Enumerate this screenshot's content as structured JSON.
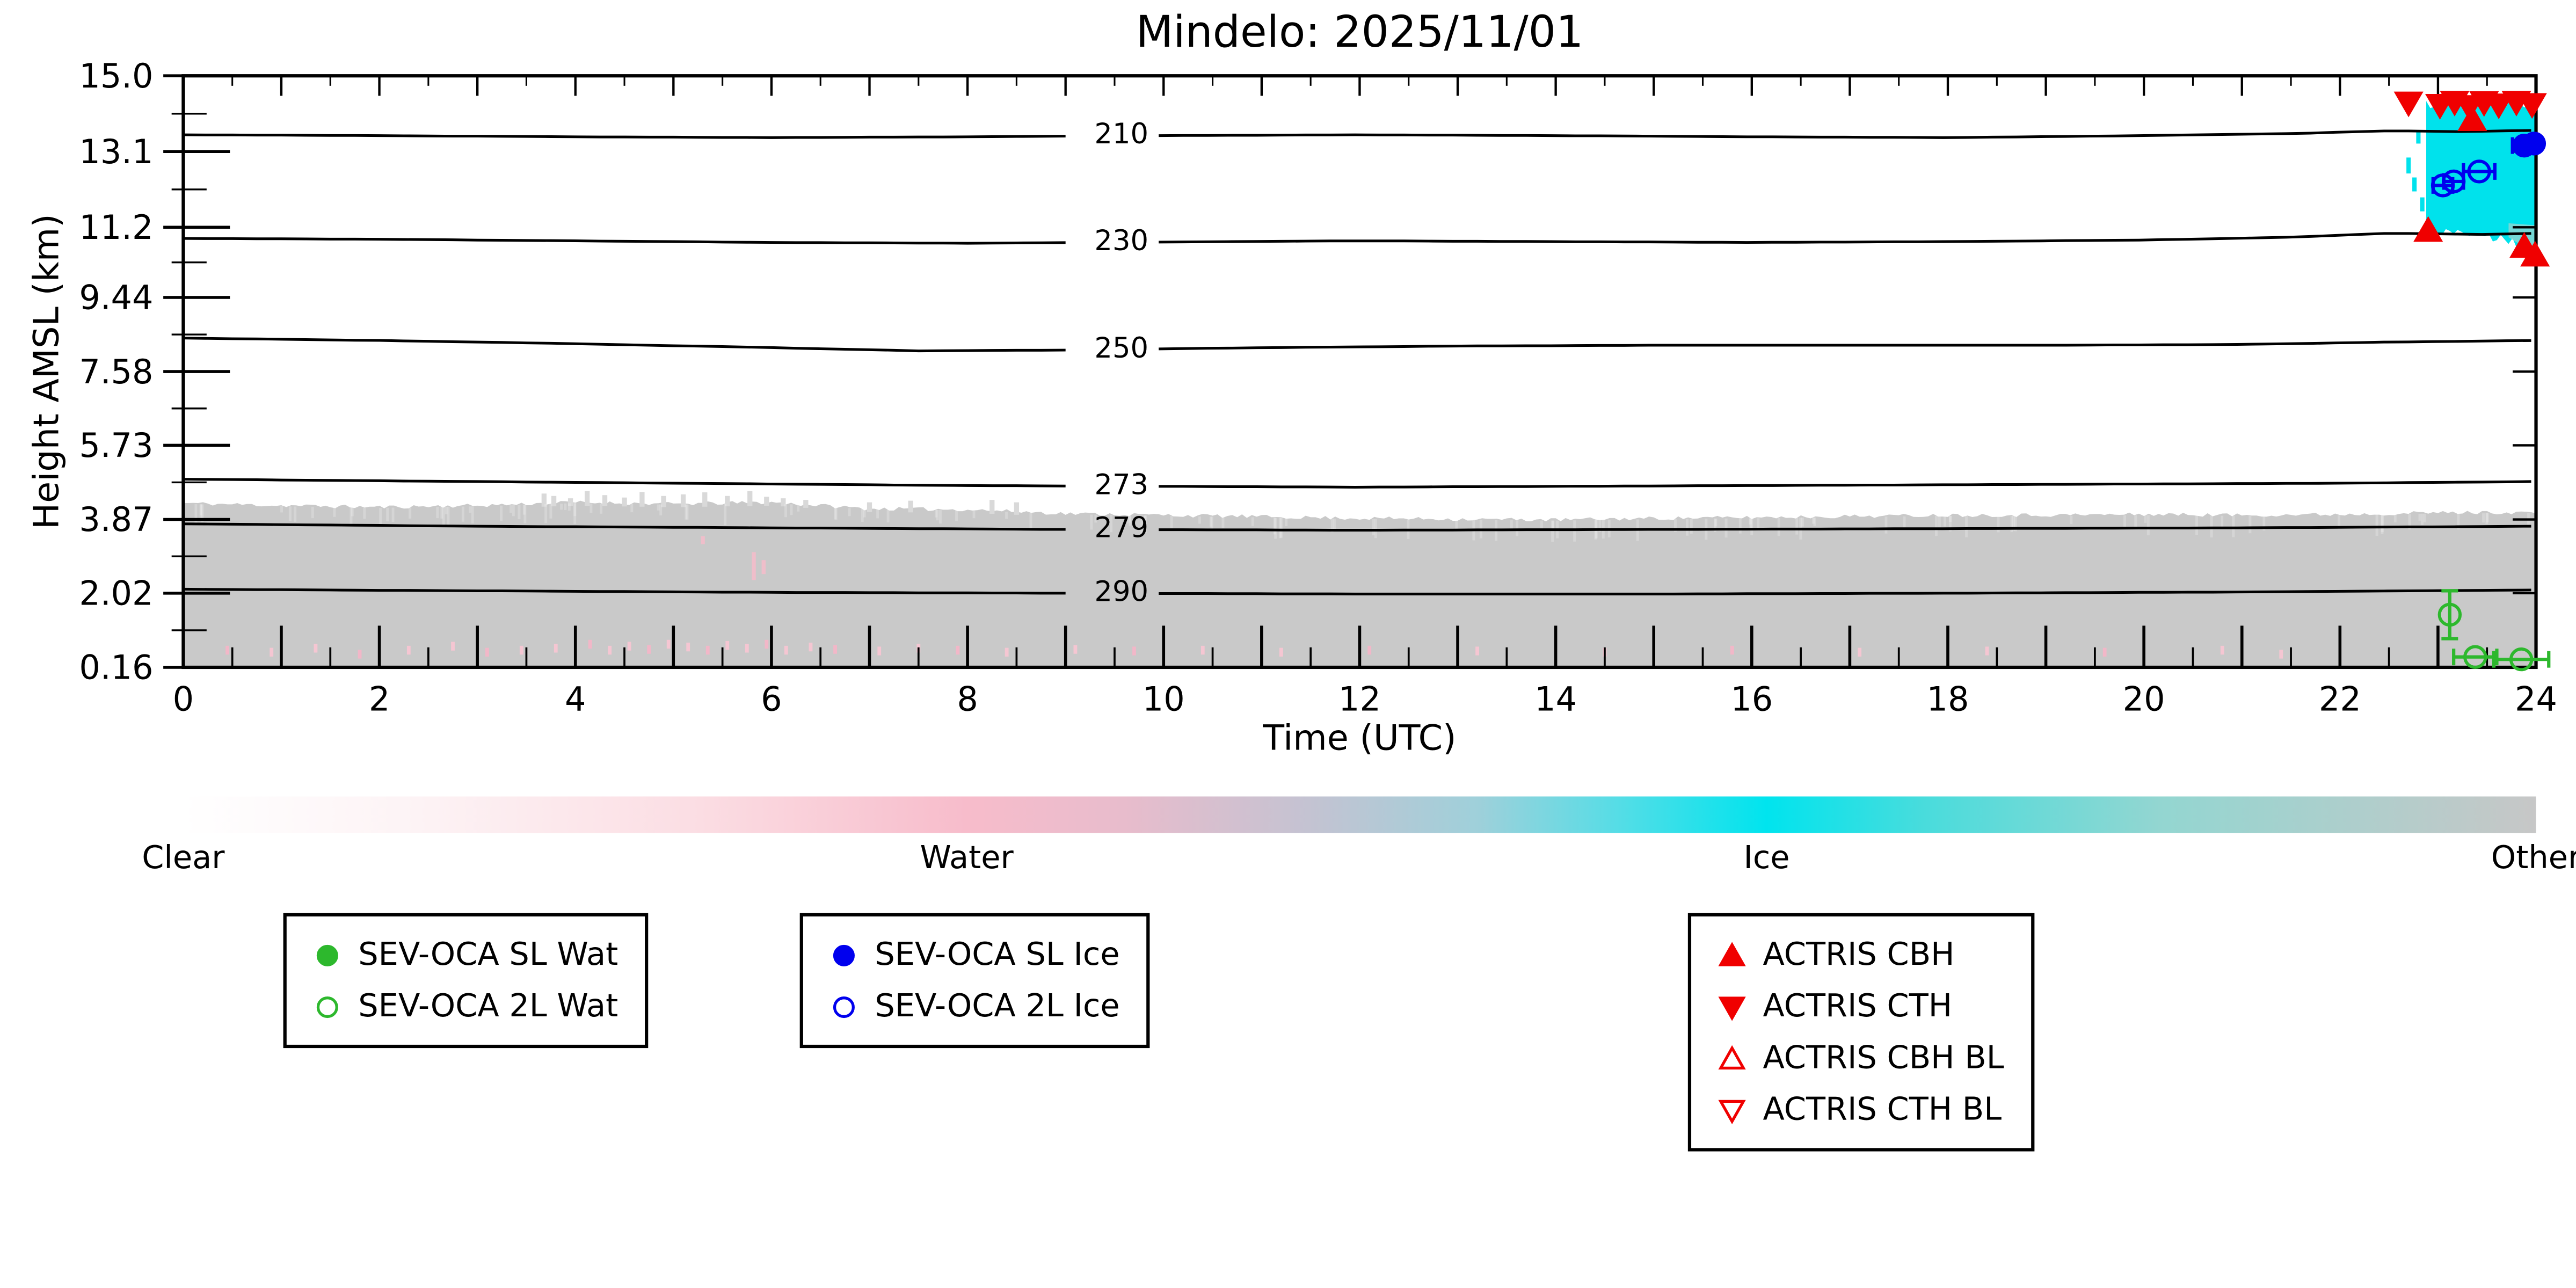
{
  "chart_data": {
    "type": "heatmap",
    "title": "Mindelo: 2025/11/01",
    "xlabel": "Time (UTC)",
    "ylabel": "Height AMSL (km)",
    "xlim": [
      0,
      24
    ],
    "ylim_km": [
      0.16,
      15.0
    ],
    "x_label_ticks": [
      "0",
      "2",
      "4",
      "6",
      "8",
      "10",
      "12",
      "14",
      "16",
      "18",
      "20",
      "22",
      "24"
    ],
    "x_label_step": 2,
    "x_major_step": 1,
    "x_minor_step": 0.5,
    "y_ticks": [
      {
        "label": "15.0",
        "value": 15.0
      },
      {
        "label": "13.1",
        "value": 13.1
      },
      {
        "label": "11.2",
        "value": 11.2
      },
      {
        "label": "9.44",
        "value": 9.44
      },
      {
        "label": "7.58",
        "value": 7.58
      },
      {
        "label": "5.73",
        "value": 5.73
      },
      {
        "label": "3.87",
        "value": 3.87
      },
      {
        "label": "2.02",
        "value": 2.02
      },
      {
        "label": "0.16",
        "value": 0.16
      }
    ],
    "isotherms": [
      {
        "label": "210",
        "label_t": 9.57,
        "label_h": 13.5,
        "points": [
          [
            0,
            13.52
          ],
          [
            2,
            13.5
          ],
          [
            4,
            13.47
          ],
          [
            6,
            13.45
          ],
          [
            8,
            13.47
          ],
          [
            10,
            13.5
          ],
          [
            12,
            13.52
          ],
          [
            14,
            13.5
          ],
          [
            16,
            13.47
          ],
          [
            18,
            13.45
          ],
          [
            20,
            13.5
          ],
          [
            21.5,
            13.55
          ],
          [
            22.5,
            13.62
          ],
          [
            23.2,
            13.6
          ],
          [
            24,
            13.63
          ]
        ]
      },
      {
        "label": "230",
        "label_t": 9.57,
        "label_h": 10.82,
        "points": [
          [
            0,
            10.92
          ],
          [
            2,
            10.9
          ],
          [
            4,
            10.86
          ],
          [
            6,
            10.82
          ],
          [
            8,
            10.8
          ],
          [
            10,
            10.83
          ],
          [
            12,
            10.86
          ],
          [
            14,
            10.84
          ],
          [
            16,
            10.82
          ],
          [
            18,
            10.84
          ],
          [
            20,
            10.88
          ],
          [
            21.5,
            10.95
          ],
          [
            22.5,
            11.05
          ],
          [
            23.5,
            11.02
          ],
          [
            24,
            11.05
          ]
        ]
      },
      {
        "label": "250",
        "label_t": 9.57,
        "label_h": 8.13,
        "points": [
          [
            0,
            8.42
          ],
          [
            2,
            8.36
          ],
          [
            4,
            8.28
          ],
          [
            6,
            8.18
          ],
          [
            7.5,
            8.1
          ],
          [
            9,
            8.12
          ],
          [
            11,
            8.18
          ],
          [
            13,
            8.22
          ],
          [
            15,
            8.24
          ],
          [
            17,
            8.24
          ],
          [
            19,
            8.24
          ],
          [
            21,
            8.26
          ],
          [
            22.5,
            8.32
          ],
          [
            24,
            8.36
          ]
        ]
      },
      {
        "label": "273",
        "label_t": 9.57,
        "label_h": 4.7,
        "points": [
          [
            0,
            4.88
          ],
          [
            2,
            4.84
          ],
          [
            4,
            4.8
          ],
          [
            6,
            4.76
          ],
          [
            8,
            4.72
          ],
          [
            10,
            4.7
          ],
          [
            12,
            4.68
          ],
          [
            14,
            4.7
          ],
          [
            16,
            4.72
          ],
          [
            18,
            4.74
          ],
          [
            20,
            4.76
          ],
          [
            22,
            4.78
          ],
          [
            24,
            4.82
          ]
        ]
      },
      {
        "label": "279",
        "label_t": 9.57,
        "label_h": 3.62,
        "points": [
          [
            0,
            3.76
          ],
          [
            3,
            3.7
          ],
          [
            6,
            3.66
          ],
          [
            9,
            3.62
          ],
          [
            12,
            3.6
          ],
          [
            15,
            3.62
          ],
          [
            18,
            3.64
          ],
          [
            21,
            3.66
          ],
          [
            24,
            3.7
          ]
        ]
      },
      {
        "label": "290",
        "label_t": 9.57,
        "label_h": 2.02,
        "points": [
          [
            0,
            2.12
          ],
          [
            3,
            2.08
          ],
          [
            6,
            2.04
          ],
          [
            9,
            2.02
          ],
          [
            12,
            2.0
          ],
          [
            15,
            2.0
          ],
          [
            18,
            2.02
          ],
          [
            21,
            2.05
          ],
          [
            24,
            2.1
          ]
        ]
      }
    ],
    "other_region": {
      "color": "#c9c9c9",
      "base_km": 0.16,
      "jitter_km": 0.05,
      "top_profile": [
        [
          0,
          4.28
        ],
        [
          1,
          4.22
        ],
        [
          2,
          4.18
        ],
        [
          3,
          4.22
        ],
        [
          4,
          4.3
        ],
        [
          5,
          4.26
        ],
        [
          6,
          4.3
        ],
        [
          7,
          4.14
        ],
        [
          8,
          4.12
        ],
        [
          9,
          4.02
        ],
        [
          10,
          3.98
        ],
        [
          11,
          3.94
        ],
        [
          12,
          3.9
        ],
        [
          13,
          3.88
        ],
        [
          14,
          3.86
        ],
        [
          15,
          3.9
        ],
        [
          16,
          3.92
        ],
        [
          17,
          3.95
        ],
        [
          18,
          3.98
        ],
        [
          19,
          3.98
        ],
        [
          20,
          4.0
        ],
        [
          21,
          3.98
        ],
        [
          22,
          4.0
        ],
        [
          23,
          4.04
        ],
        [
          24,
          4.05
        ]
      ],
      "light_streaks": [
        [
          3.68,
          4.52
        ],
        [
          3.78,
          4.46
        ],
        [
          3.95,
          4.4
        ],
        [
          4.12,
          4.58
        ],
        [
          4.3,
          4.48
        ],
        [
          4.5,
          4.42
        ],
        [
          4.68,
          4.56
        ],
        [
          4.9,
          4.46
        ],
        [
          5.1,
          4.5
        ],
        [
          5.32,
          4.55
        ],
        [
          5.55,
          4.46
        ],
        [
          5.78,
          4.58
        ],
        [
          5.95,
          4.44
        ],
        [
          6.12,
          4.4
        ],
        [
          6.35,
          4.36
        ],
        [
          7.0,
          4.3
        ],
        [
          7.42,
          4.34
        ],
        [
          8.25,
          4.36
        ],
        [
          8.5,
          4.3
        ]
      ],
      "streak_color": "#d9d9d9",
      "texture_count": 160
    },
    "ice_region": {
      "color": "#00e2ec",
      "t0": 22.88,
      "t1": 24,
      "top": [
        [
          22.88,
          14.25
        ],
        [
          23.1,
          14.33
        ],
        [
          23.4,
          14.28
        ],
        [
          23.7,
          14.33
        ],
        [
          24,
          14.3
        ]
      ],
      "bottom": [
        [
          22.88,
          11.15
        ],
        [
          23.1,
          11.05
        ],
        [
          23.4,
          11.0
        ],
        [
          23.7,
          10.9
        ],
        [
          23.9,
          10.68
        ],
        [
          24,
          10.5
        ]
      ],
      "top_jitter": 0.12,
      "bottom_jitter": 0.1,
      "columns": [
        [
          22.7,
          12.55,
          12.95
        ],
        [
          22.76,
          12.1,
          12.45
        ],
        [
          22.8,
          13.3,
          13.62
        ],
        [
          22.84,
          11.6,
          11.95
        ]
      ],
      "patches": [
        {
          "pts": [
            [
              23.72,
              10.95
            ],
            [
              24,
              10.52
            ],
            [
              24,
              11.25
            ],
            [
              23.72,
              11.3
            ]
          ],
          "color": "#8ad6d2",
          "opacity": 0.85
        }
      ]
    },
    "water_marks": {
      "color_a": "#f5c6d2",
      "color_b": "#f2b7c8",
      "mark_height_km": 0.22,
      "points": [
        [
          0.45,
          0.7
        ],
        [
          0.9,
          0.65
        ],
        [
          1.35,
          0.75
        ],
        [
          1.8,
          0.6
        ],
        [
          2.3,
          0.7
        ],
        [
          2.75,
          0.8
        ],
        [
          3.1,
          0.65
        ],
        [
          3.45,
          0.7
        ],
        [
          3.8,
          0.75
        ],
        [
          4.15,
          0.85
        ],
        [
          4.35,
          0.7
        ],
        [
          4.55,
          0.8
        ],
        [
          4.75,
          0.72
        ],
        [
          4.95,
          0.85
        ],
        [
          5.15,
          0.78
        ],
        [
          5.35,
          0.7
        ],
        [
          5.55,
          0.82
        ],
        [
          5.75,
          0.75
        ],
        [
          5.95,
          0.85
        ],
        [
          6.15,
          0.7
        ],
        [
          6.4,
          0.78
        ],
        [
          6.65,
          0.72
        ],
        [
          7.1,
          0.68
        ],
        [
          7.5,
          0.75
        ],
        [
          7.9,
          0.7
        ],
        [
          8.4,
          0.65
        ],
        [
          9.1,
          0.72
        ],
        [
          9.7,
          0.68
        ],
        [
          10.4,
          0.7
        ],
        [
          11.2,
          0.65
        ],
        [
          12.1,
          0.7
        ],
        [
          13.2,
          0.68
        ],
        [
          14.5,
          0.65
        ],
        [
          15.8,
          0.7
        ],
        [
          17.1,
          0.65
        ],
        [
          18.4,
          0.68
        ],
        [
          19.6,
          0.65
        ],
        [
          20.8,
          0.7
        ],
        [
          21.4,
          0.6
        ]
      ]
    },
    "water_streaks": {
      "color": "#f3bcca",
      "segments": [
        [
          5.82,
          2.35,
          3.05
        ],
        [
          5.92,
          2.5,
          2.85
        ],
        [
          5.3,
          3.25,
          3.45
        ]
      ]
    },
    "series": [
      {
        "id": "actris-cth",
        "label": "ACTRIS CTH",
        "marker": "triangle-down-filled",
        "color": "#f00000",
        "points": [
          [
            22.7,
            14.32
          ],
          [
            23.02,
            14.26
          ],
          [
            23.17,
            14.34
          ],
          [
            23.32,
            14.23
          ],
          [
            23.47,
            14.33
          ],
          [
            23.62,
            14.27
          ],
          [
            23.8,
            14.34
          ],
          [
            23.96,
            14.28
          ]
        ]
      },
      {
        "id": "actris-cbh",
        "label": "ACTRIS CBH",
        "marker": "triangle-up-filled",
        "color": "#f00000",
        "points": [
          [
            22.9,
            11.12
          ],
          [
            23.35,
            13.9
          ],
          [
            23.88,
            10.72
          ],
          [
            23.99,
            10.5
          ]
        ]
      },
      {
        "id": "sev-oca-sl-ice",
        "label": "SEV-OCA SL Ice",
        "marker": "circle-filled",
        "color": "#0000ee",
        "points": [
          [
            23.88,
            13.25
          ],
          [
            23.98,
            13.3
          ]
        ],
        "xerr": [
          0.12,
          0.06
        ]
      },
      {
        "id": "sev-oca-2l-ice",
        "label": "SEV-OCA 2L Ice",
        "marker": "circle-open",
        "color": "#0000ee",
        "points": [
          [
            23.05,
            12.25
          ],
          [
            23.16,
            12.35
          ],
          [
            23.42,
            12.6
          ]
        ],
        "xerr": [
          0.1,
          0.1,
          0.16
        ]
      },
      {
        "id": "sev-oca-2l-wat",
        "label": "SEV-OCA 2L Wat",
        "marker": "circle-open",
        "color": "#2db82d",
        "points": [
          [
            23.12,
            1.48
          ]
        ],
        "yerr": [
          0.6
        ]
      },
      {
        "id": "sev-oca-2l-wat-low",
        "label": "SEV-OCA 2L Wat",
        "marker": "circle-open",
        "color": "#2db82d",
        "points": [
          [
            23.38,
            0.42
          ],
          [
            23.85,
            0.36
          ]
        ],
        "xerr": [
          0.22,
          0.28
        ]
      }
    ],
    "colorbar": {
      "stops": [
        [
          0,
          "#ffffff"
        ],
        [
          0.1,
          "#fdf3f5"
        ],
        [
          0.22,
          "#fbdde3"
        ],
        [
          0.333,
          "#f7bccb"
        ],
        [
          0.4,
          "#e8bccc"
        ],
        [
          0.48,
          "#c3c3d2"
        ],
        [
          0.55,
          "#9fd0da"
        ],
        [
          0.61,
          "#55dde6"
        ],
        [
          0.673,
          "#00e4ee"
        ],
        [
          0.74,
          "#49dcdc"
        ],
        [
          0.84,
          "#93d6d1"
        ],
        [
          1,
          "#c7c7c7"
        ]
      ],
      "labels": [
        {
          "text": "Clear",
          "frac": 0
        },
        {
          "text": "Water",
          "frac": 0.333
        },
        {
          "text": "Ice",
          "frac": 0.673
        },
        {
          "text": "Other",
          "frac": 1
        }
      ]
    },
    "noise_seed": 11
  },
  "legends": [
    {
      "items": [
        {
          "marker": "circle-filled",
          "color": "#2db82d",
          "label": "SEV-OCA SL Wat"
        },
        {
          "marker": "circle-open",
          "color": "#2db82d",
          "label": "SEV-OCA 2L Wat"
        }
      ]
    },
    {
      "items": [
        {
          "marker": "circle-filled",
          "color": "#0000ee",
          "label": "SEV-OCA SL Ice"
        },
        {
          "marker": "circle-open",
          "color": "#0000ee",
          "label": "SEV-OCA 2L Ice"
        }
      ]
    },
    {
      "items": [
        {
          "marker": "triangle-up-filled",
          "color": "#f00000",
          "label": "ACTRIS CBH"
        },
        {
          "marker": "triangle-down-filled",
          "color": "#f00000",
          "label": "ACTRIS CTH"
        },
        {
          "marker": "triangle-up-open",
          "color": "#f00000",
          "label": "ACTRIS CBH BL"
        },
        {
          "marker": "triangle-down-open",
          "color": "#f00000",
          "label": "ACTRIS CTH BL"
        }
      ]
    }
  ]
}
